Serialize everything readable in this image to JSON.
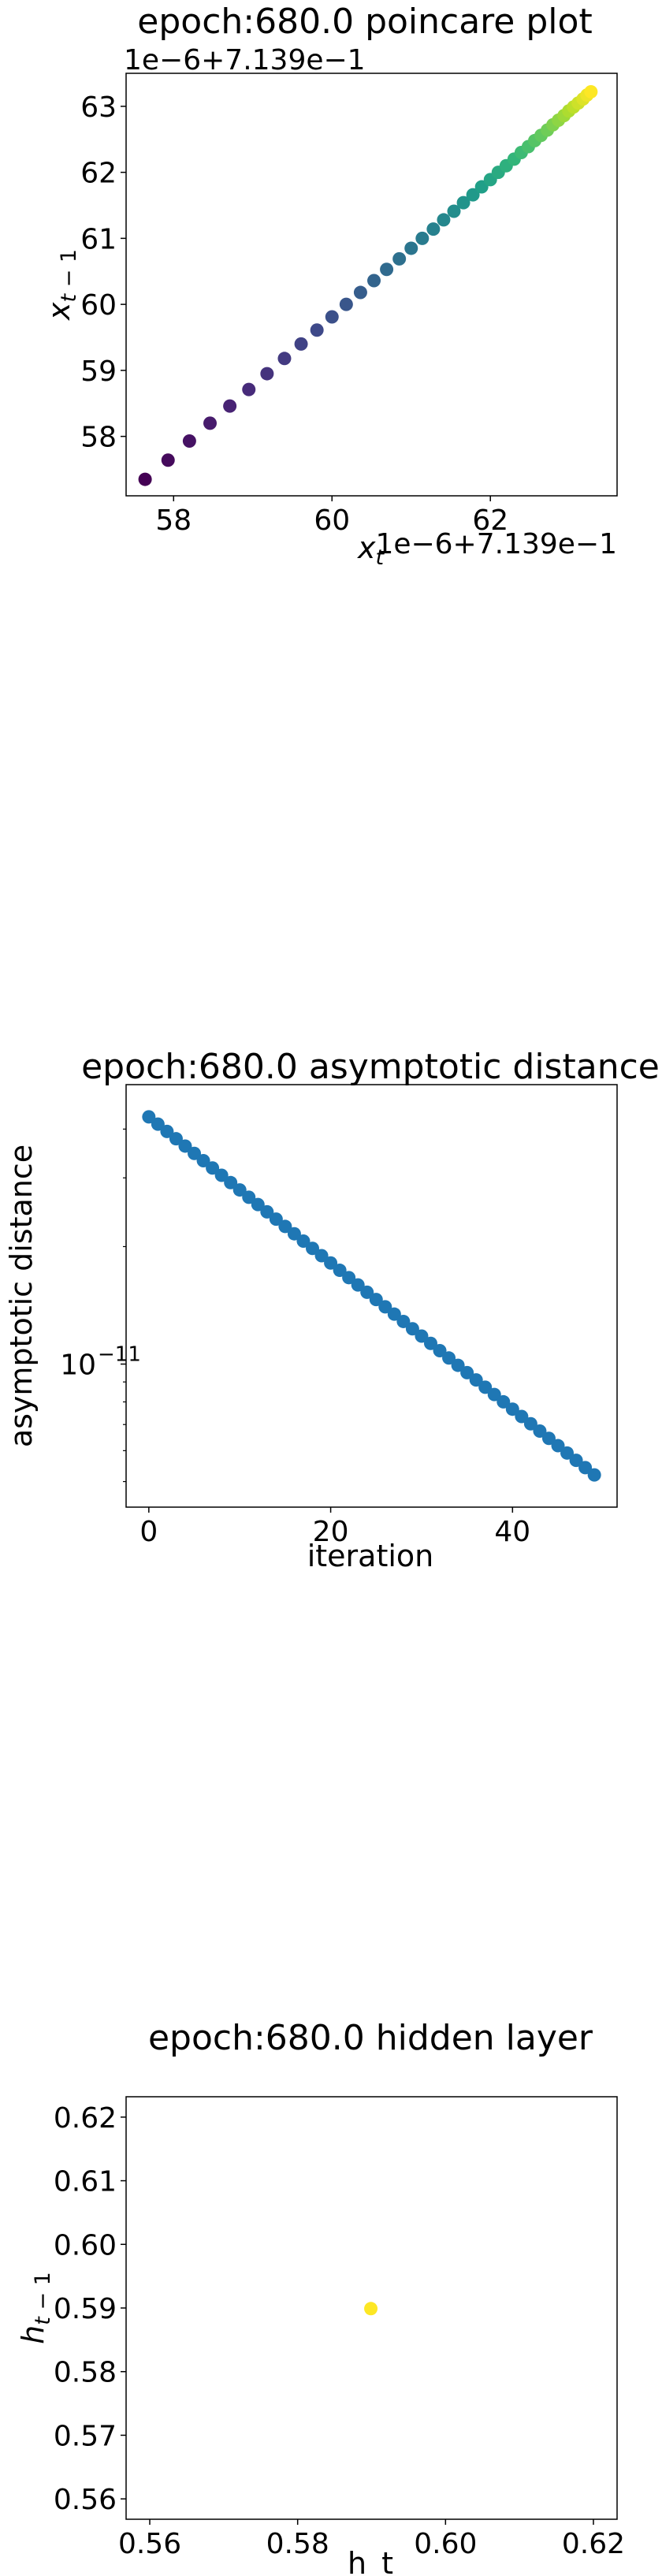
{
  "chart_data": [
    {
      "type": "scatter",
      "title": "epoch:680.0 poincare plot",
      "xlabel": "x_t",
      "ylabel": "x_{t-1}",
      "offset_text": "1e−6+7.139e−1",
      "x_offset_text": "1e−6+7.139e−1",
      "y_offset_text": "1e−6+7.139e−1",
      "xlim": [
        57.4,
        63.6
      ],
      "ylim": [
        57.1,
        63.5
      ],
      "xticks": [
        58,
        60,
        62
      ],
      "yticks": [
        58,
        59,
        60,
        61,
        62,
        63
      ],
      "colormap": "viridis",
      "points": {
        "x": [
          57.64,
          57.93,
          58.2,
          58.46,
          58.71,
          58.95,
          59.18,
          59.4,
          59.61,
          59.81,
          60.0,
          60.18,
          60.36,
          60.53,
          60.69,
          60.85,
          61.0,
          61.14,
          61.28,
          61.41,
          61.54,
          61.66,
          61.78,
          61.89,
          62.0,
          62.1,
          62.2,
          62.3,
          62.39,
          62.48,
          62.56,
          62.64,
          62.72,
          62.79,
          62.86,
          62.93,
          62.99,
          63.05,
          63.11,
          63.17,
          63.22,
          63.27
        ],
        "y": [
          57.35,
          57.64,
          57.93,
          58.2,
          58.46,
          58.71,
          58.95,
          59.18,
          59.4,
          59.61,
          59.81,
          60.0,
          60.18,
          60.36,
          60.53,
          60.69,
          60.85,
          61.0,
          61.14,
          61.28,
          61.41,
          61.54,
          61.66,
          61.78,
          61.89,
          62.0,
          62.1,
          62.2,
          62.3,
          62.39,
          62.48,
          62.56,
          62.64,
          62.72,
          62.79,
          62.86,
          62.93,
          62.99,
          63.05,
          63.11,
          63.17,
          63.22
        ]
      }
    },
    {
      "type": "scatter",
      "title": "epoch:680.0 asymptotic distance",
      "xlabel": "iteration",
      "ylabel": "asymptotic distance",
      "yscale": "log",
      "xlim": [
        -2.5,
        51.5
      ],
      "ylim": [
        4.3e-12,
        5.2e-11
      ],
      "xticks": [
        0,
        20,
        40
      ],
      "ytick_label": "10",
      "ytick_exponent": "−11",
      "ytick_value": 1e-11,
      "color": "#1f77b4",
      "points": {
        "x_start": 0,
        "x_end": 49,
        "y_start": 4.3e-11,
        "y_end": 5.2e-12
      }
    },
    {
      "type": "scatter",
      "title": "epoch:680.0 hidden layer",
      "xlabel": "h_t",
      "ylabel": "h_{t-1}",
      "xlim": [
        0.5568,
        0.6232
      ],
      "ylim": [
        0.5568,
        0.6232
      ],
      "xticks": [
        0.56,
        0.58,
        0.6,
        0.62
      ],
      "xtick_labels": [
        "0.56",
        "0.58",
        "0.60",
        "0.62"
      ],
      "yticks": [
        0.56,
        0.57,
        0.58,
        0.59,
        0.6,
        0.61,
        0.62
      ],
      "ytick_labels": [
        "0.56",
        "0.57",
        "0.58",
        "0.59",
        "0.60",
        "0.61",
        "0.62"
      ],
      "color": "#fde725",
      "points": {
        "x": [
          0.5899
        ],
        "y": [
          0.5899
        ]
      }
    }
  ]
}
